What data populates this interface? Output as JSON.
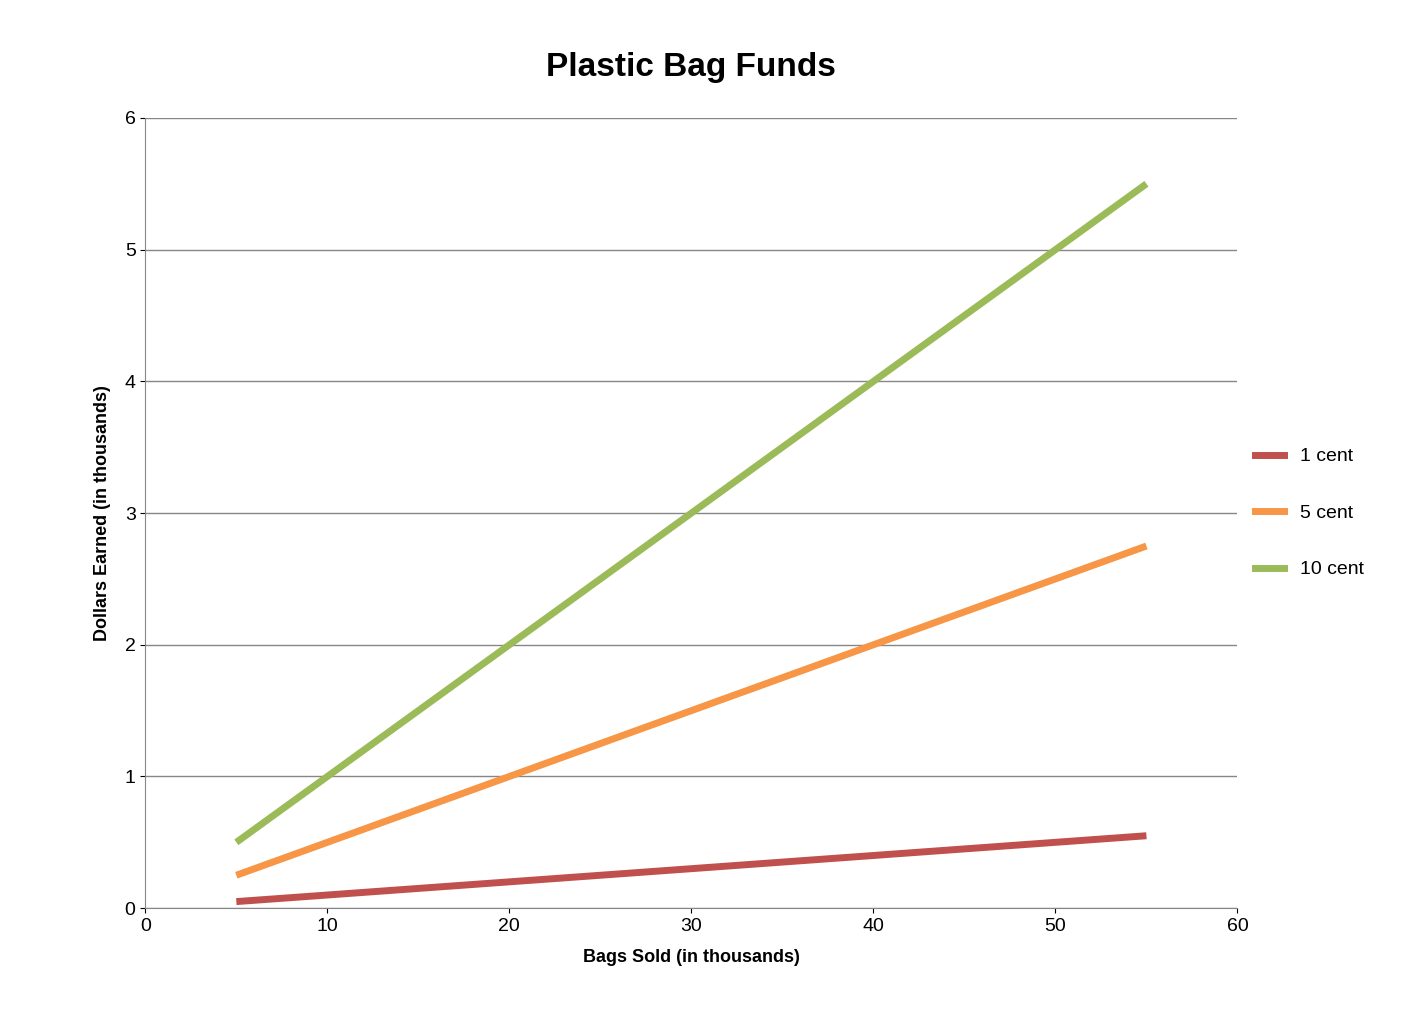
{
  "chart_data": {
    "type": "line",
    "title": "Plastic Bag Funds",
    "x_label": "Bags Sold (in thousands)",
    "y_label": "Dollars Earned (in thousands)",
    "x": [
      5,
      10,
      15,
      20,
      25,
      30,
      35,
      40,
      45,
      50,
      55
    ],
    "series": [
      {
        "name": "1 cent",
        "color": "#c0504d",
        "values": [
          0.05,
          0.1,
          0.15,
          0.2,
          0.25,
          0.3,
          0.35,
          0.4,
          0.45,
          0.5,
          0.55
        ]
      },
      {
        "name": "5 cent",
        "color": "#f79646",
        "values": [
          0.25,
          0.5,
          0.75,
          1.0,
          1.25,
          1.5,
          1.75,
          2.0,
          2.25,
          2.5,
          2.75
        ]
      },
      {
        "name": "10 cent",
        "color": "#9bbb59",
        "values": [
          0.5,
          1.0,
          1.5,
          2.0,
          2.5,
          3.0,
          3.5,
          4.0,
          4.5,
          5.0,
          5.5
        ]
      }
    ],
    "xlim": [
      0,
      60
    ],
    "xticks": [
      0,
      10,
      20,
      30,
      40,
      50,
      60
    ],
    "ylim": [
      0,
      6
    ],
    "yticks": [
      0,
      1,
      2,
      3,
      4,
      5,
      6
    ],
    "grid": true,
    "legend": "right"
  }
}
